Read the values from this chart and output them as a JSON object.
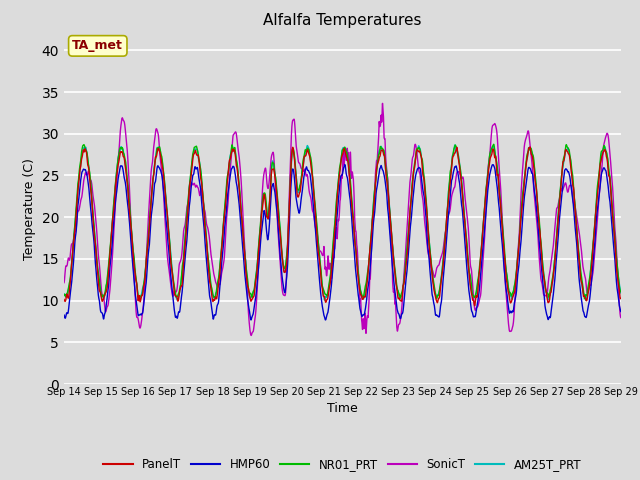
{
  "title": "Alfalfa Temperatures",
  "xlabel": "Time",
  "ylabel": "Temperature (C)",
  "ylim": [
    0,
    42
  ],
  "yticks": [
    0,
    5,
    10,
    15,
    20,
    25,
    30,
    35,
    40
  ],
  "annotation_text": "TA_met",
  "annotation_color": "#8B0000",
  "annotation_bg": "#FFFFCC",
  "annotation_border": "#AAAA00",
  "background_color": "#DCDCDC",
  "plot_bg": "#DCDCDC",
  "grid_color": "#FFFFFF",
  "series": {
    "PanelT": {
      "color": "#CC0000",
      "lw": 1.0,
      "zorder": 5
    },
    "HMP60": {
      "color": "#0000CC",
      "lw": 1.0,
      "zorder": 4
    },
    "NR01_PRT": {
      "color": "#00BB00",
      "lw": 1.0,
      "zorder": 3
    },
    "SonicT": {
      "color": "#BB00BB",
      "lw": 1.0,
      "zorder": 2
    },
    "AM25T_PRT": {
      "color": "#00BBBB",
      "lw": 1.0,
      "zorder": 1
    }
  },
  "n_points": 3600,
  "x_start": 14,
  "x_end": 29,
  "xtick_positions": [
    14,
    15,
    16,
    17,
    18,
    19,
    20,
    21,
    22,
    23,
    24,
    25,
    26,
    27,
    28,
    29
  ],
  "xtick_labels": [
    "Sep 14",
    "Sep 15",
    "Sep 16",
    "Sep 17",
    "Sep 18",
    "Sep 19",
    "Sep 20",
    "Sep 21",
    "Sep 22",
    "Sep 23",
    "Sep 24",
    "Sep 25",
    "Sep 26",
    "Sep 27",
    "Sep 28",
    "Sep 29"
  ]
}
